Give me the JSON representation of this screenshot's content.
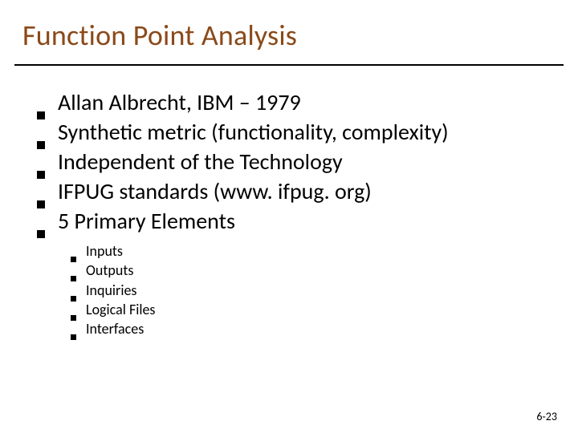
{
  "title": {
    "text": "Function Point Analysis",
    "color": "#8a4a1a",
    "fontsize": 36,
    "fontweight": 400
  },
  "title_underline_color": "#000000",
  "background_color": "#ffffff",
  "main_list": {
    "fontsize": 28,
    "bullet_color": "#000000",
    "bullet_size": 10,
    "items": [
      {
        "text": "Allan Albrecht, IBM – 1979"
      },
      {
        "text": "Synthetic metric (functionality, complexity)"
      },
      {
        "text": "Independent of the Technology"
      },
      {
        "text": "IFPUG standards (www. ifpug. org)"
      },
      {
        "text": "5 Primary Elements"
      }
    ]
  },
  "sub_list": {
    "fontsize": 18,
    "bullet_color": "#000000",
    "bullet_size": 7,
    "items": [
      {
        "text": "Inputs"
      },
      {
        "text": "Outputs"
      },
      {
        "text": "Inquiries"
      },
      {
        "text": "Logical Files"
      },
      {
        "text": "Interfaces"
      }
    ]
  },
  "footer": {
    "text": "6-23",
    "fontsize": 14
  }
}
